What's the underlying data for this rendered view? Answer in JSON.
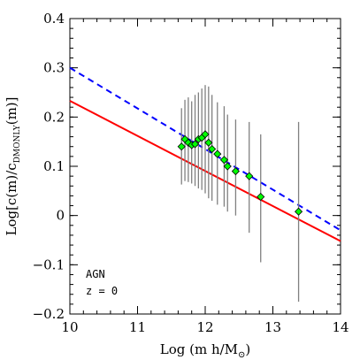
{
  "chart_data": {
    "type": "scatter",
    "xlabel_parts": {
      "prefix": "Log (m h/M",
      "sub": "⊙",
      "suffix": ")"
    },
    "ylabel_parts": {
      "prefix": "Log[c(m)/c",
      "sub": "DMONLY",
      "suffix": "(m)]"
    },
    "xlim": [
      10,
      14
    ],
    "ylim": [
      -0.2,
      0.4
    ],
    "x_ticks": [
      10,
      11,
      12,
      13,
      14
    ],
    "x_tick_labels": [
      "10",
      "11",
      "12",
      "13",
      "14"
    ],
    "y_ticks": [
      -0.2,
      -0.1,
      0,
      0.1,
      0.2,
      0.3,
      0.4
    ],
    "y_tick_labels": [
      "−0.2",
      "−0.1",
      "0",
      "0.1",
      "0.2",
      "0.3",
      "0.4"
    ],
    "x_minor_step": 0.2,
    "y_minor_step": 0.02,
    "grid": false,
    "annotation": [
      "AGN",
      "z = 0"
    ],
    "points": [
      {
        "x": 11.65,
        "y": 0.14,
        "ylo": 0.063,
        "yhi": 0.218
      },
      {
        "x": 11.7,
        "y": 0.155,
        "ylo": 0.07,
        "yhi": 0.235
      },
      {
        "x": 11.75,
        "y": 0.148,
        "ylo": 0.068,
        "yhi": 0.24
      },
      {
        "x": 11.8,
        "y": 0.143,
        "ylo": 0.065,
        "yhi": 0.232
      },
      {
        "x": 11.85,
        "y": 0.145,
        "ylo": 0.06,
        "yhi": 0.245
      },
      {
        "x": 11.9,
        "y": 0.155,
        "ylo": 0.055,
        "yhi": 0.25
      },
      {
        "x": 11.95,
        "y": 0.158,
        "ylo": 0.052,
        "yhi": 0.258
      },
      {
        "x": 12.0,
        "y": 0.165,
        "ylo": 0.045,
        "yhi": 0.265
      },
      {
        "x": 12.05,
        "y": 0.148,
        "ylo": 0.035,
        "yhi": 0.262
      },
      {
        "x": 12.1,
        "y": 0.135,
        "ylo": 0.03,
        "yhi": 0.245
      },
      {
        "x": 12.18,
        "y": 0.125,
        "ylo": 0.022,
        "yhi": 0.23
      },
      {
        "x": 12.28,
        "y": 0.113,
        "ylo": 0.018,
        "yhi": 0.222
      },
      {
        "x": 12.33,
        "y": 0.1,
        "ylo": 0.008,
        "yhi": 0.205
      },
      {
        "x": 12.45,
        "y": 0.09,
        "ylo": 0.0,
        "yhi": 0.195
      },
      {
        "x": 12.65,
        "y": 0.08,
        "ylo": -0.035,
        "yhi": 0.19
      },
      {
        "x": 12.82,
        "y": 0.038,
        "ylo": -0.095,
        "yhi": 0.165
      },
      {
        "x": 13.38,
        "y": 0.008,
        "ylo": -0.175,
        "yhi": 0.19
      }
    ],
    "lines": [
      {
        "style": "solid",
        "color": "#ff0000",
        "x": [
          10,
          14
        ],
        "y": [
          0.233,
          -0.052
        ]
      },
      {
        "style": "dashed",
        "color": "#0000ff",
        "x": [
          10,
          14
        ],
        "y": [
          0.3,
          -0.03
        ]
      }
    ],
    "marker_fill": "#00ff00",
    "marker_edge": "#000000",
    "errorbar_color": "#808080"
  }
}
